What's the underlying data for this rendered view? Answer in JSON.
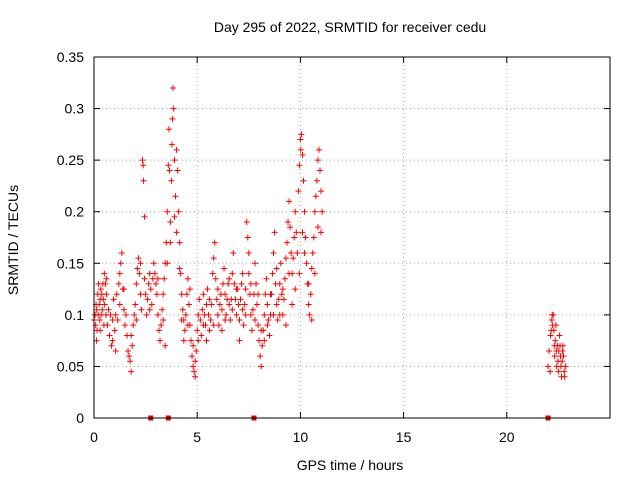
{
  "chart_data": {
    "type": "scatter",
    "title": "Day 295 of 2022, SRMTID for receiver cedu",
    "xlabel": "GPS time / hours",
    "ylabel": "SRMTID / TECUs",
    "xlim": [
      0,
      25
    ],
    "ylim": [
      0,
      0.35
    ],
    "x_ticks": [
      0,
      5,
      10,
      15,
      20
    ],
    "x_tick_labels": [
      "0",
      "5",
      "10",
      "15",
      "20"
    ],
    "y_ticks": [
      0,
      0.05,
      0.1,
      0.15,
      0.2,
      0.25,
      0.3,
      0.35
    ],
    "y_tick_labels": [
      "0",
      "0.05",
      "0.1",
      "0.15",
      "0.2",
      "0.25",
      "0.3",
      "0.35"
    ],
    "grid": true,
    "marker": "plus",
    "colors": {
      "points": "#ff0000",
      "gap_markers": "#dd0000",
      "grid": "#a0a0a0",
      "axes": "#000000"
    },
    "gap_markers_x": [
      2.75,
      3.6,
      7.75,
      22.0
    ],
    "points": [
      [
        0.0,
        0.095
      ],
      [
        0.05,
        0.1
      ],
      [
        0.08,
        0.09
      ],
      [
        0.1,
        0.11
      ],
      [
        0.13,
        0.105
      ],
      [
        0.15,
        0.085
      ],
      [
        0.18,
        0.12
      ],
      [
        0.2,
        0.1
      ],
      [
        0.22,
        0.13
      ],
      [
        0.25,
        0.11
      ],
      [
        0.28,
        0.095
      ],
      [
        0.3,
        0.115
      ],
      [
        0.33,
        0.125
      ],
      [
        0.35,
        0.1
      ],
      [
        0.38,
        0.12
      ],
      [
        0.4,
        0.105
      ],
      [
        0.43,
        0.13
      ],
      [
        0.45,
        0.115
      ],
      [
        0.48,
        0.09
      ],
      [
        0.5,
        0.14
      ],
      [
        0.52,
        0.11
      ],
      [
        0.55,
        0.13
      ],
      [
        0.58,
        0.1
      ],
      [
        0.6,
        0.12
      ],
      [
        0.65,
        0.09
      ],
      [
        0.7,
        0.105
      ],
      [
        0.75,
        0.08
      ],
      [
        0.8,
        0.1
      ],
      [
        0.85,
        0.07
      ],
      [
        0.9,
        0.095
      ],
      [
        0.95,
        0.115
      ],
      [
        1.0,
        0.085
      ],
      [
        1.05,
        0.1
      ],
      [
        1.1,
        0.12
      ],
      [
        1.15,
        0.095
      ],
      [
        1.2,
        0.13
      ],
      [
        1.25,
        0.11
      ],
      [
        1.3,
        0.15
      ],
      [
        1.35,
        0.16
      ],
      [
        1.4,
        0.125
      ],
      [
        1.45,
        0.105
      ],
      [
        1.5,
        0.09
      ],
      [
        1.55,
        0.1
      ],
      [
        1.6,
        0.08
      ],
      [
        1.65,
        0.065
      ],
      [
        1.7,
        0.06
      ],
      [
        1.75,
        0.055
      ],
      [
        1.8,
        0.045
      ],
      [
        1.85,
        0.07
      ],
      [
        1.9,
        0.09
      ],
      [
        1.95,
        0.1
      ],
      [
        2.0,
        0.11
      ],
      [
        2.05,
        0.13
      ],
      [
        2.1,
        0.145
      ],
      [
        2.15,
        0.155
      ],
      [
        2.2,
        0.14
      ],
      [
        2.25,
        0.12
      ],
      [
        2.3,
        0.105
      ],
      [
        2.35,
        0.25
      ],
      [
        2.38,
        0.245
      ],
      [
        2.4,
        0.23
      ],
      [
        2.45,
        0.195
      ],
      [
        2.5,
        0.12
      ],
      [
        2.55,
        0.1
      ],
      [
        2.6,
        0.115
      ],
      [
        2.65,
        0.13
      ],
      [
        2.7,
        0.14
      ],
      [
        2.75,
        0.125
      ],
      [
        2.8,
        0.11
      ],
      [
        2.85,
        0.135
      ],
      [
        2.9,
        0.15
      ],
      [
        2.95,
        0.14
      ],
      [
        3.0,
        0.13
      ],
      [
        3.05,
        0.12
      ],
      [
        3.1,
        0.1
      ],
      [
        3.15,
        0.085
      ],
      [
        3.2,
        0.075
      ],
      [
        3.25,
        0.09
      ],
      [
        3.3,
        0.105
      ],
      [
        3.35,
        0.12
      ],
      [
        3.4,
        0.135
      ],
      [
        3.45,
        0.15
      ],
      [
        3.5,
        0.17
      ],
      [
        3.55,
        0.2
      ],
      [
        3.6,
        0.245
      ],
      [
        3.63,
        0.28
      ],
      [
        3.66,
        0.24
      ],
      [
        3.7,
        0.19
      ],
      [
        3.75,
        0.23
      ],
      [
        3.78,
        0.265
      ],
      [
        3.8,
        0.29
      ],
      [
        3.83,
        0.32
      ],
      [
        3.86,
        0.3
      ],
      [
        3.9,
        0.25
      ],
      [
        3.95,
        0.215
      ],
      [
        4.0,
        0.26
      ],
      [
        4.05,
        0.24
      ],
      [
        4.1,
        0.2
      ],
      [
        4.15,
        0.17
      ],
      [
        4.2,
        0.14
      ],
      [
        4.25,
        0.12
      ],
      [
        4.3,
        0.105
      ],
      [
        4.35,
        0.095
      ],
      [
        4.4,
        0.085
      ],
      [
        4.45,
        0.1
      ],
      [
        4.5,
        0.12
      ],
      [
        4.55,
        0.135
      ],
      [
        4.6,
        0.11
      ],
      [
        4.65,
        0.09
      ],
      [
        4.7,
        0.075
      ],
      [
        4.75,
        0.06
      ],
      [
        4.8,
        0.05
      ],
      [
        4.85,
        0.045
      ],
      [
        4.9,
        0.04
      ],
      [
        4.95,
        0.065
      ],
      [
        5.0,
        0.085
      ],
      [
        5.05,
        0.1
      ],
      [
        5.1,
        0.115
      ],
      [
        5.15,
        0.095
      ],
      [
        5.2,
        0.08
      ],
      [
        5.25,
        0.105
      ],
      [
        5.3,
        0.12
      ],
      [
        5.35,
        0.1
      ],
      [
        5.4,
        0.09
      ],
      [
        5.45,
        0.11
      ],
      [
        5.5,
        0.125
      ],
      [
        5.55,
        0.1
      ],
      [
        5.6,
        0.085
      ],
      [
        5.65,
        0.095
      ],
      [
        5.7,
        0.11
      ],
      [
        5.75,
        0.14
      ],
      [
        5.8,
        0.155
      ],
      [
        5.85,
        0.17
      ],
      [
        5.9,
        0.135
      ],
      [
        5.95,
        0.115
      ],
      [
        6.0,
        0.1
      ],
      [
        6.05,
        0.09
      ],
      [
        6.1,
        0.11
      ],
      [
        6.15,
        0.12
      ],
      [
        6.2,
        0.105
      ],
      [
        6.25,
        0.13
      ],
      [
        6.3,
        0.145
      ],
      [
        6.35,
        0.12
      ],
      [
        6.4,
        0.1
      ],
      [
        6.45,
        0.115
      ],
      [
        6.5,
        0.13
      ],
      [
        6.55,
        0.11
      ],
      [
        6.6,
        0.095
      ],
      [
        6.65,
        0.115
      ],
      [
        6.7,
        0.14
      ],
      [
        6.75,
        0.16
      ],
      [
        6.8,
        0.13
      ],
      [
        6.85,
        0.115
      ],
      [
        6.9,
        0.1
      ],
      [
        6.95,
        0.125
      ],
      [
        7.0,
        0.11
      ],
      [
        7.05,
        0.095
      ],
      [
        7.1,
        0.115
      ],
      [
        7.15,
        0.13
      ],
      [
        7.2,
        0.105
      ],
      [
        7.25,
        0.09
      ],
      [
        7.3,
        0.11
      ],
      [
        7.35,
        0.125
      ],
      [
        7.4,
        0.19
      ],
      [
        7.45,
        0.175
      ],
      [
        7.5,
        0.14
      ],
      [
        7.55,
        0.12
      ],
      [
        7.6,
        0.1
      ],
      [
        7.65,
        0.085
      ],
      [
        7.7,
        0.105
      ],
      [
        7.75,
        0.12
      ],
      [
        7.8,
        0.15
      ],
      [
        7.85,
        0.13
      ],
      [
        7.9,
        0.11
      ],
      [
        7.95,
        0.09
      ],
      [
        8.0,
        0.075
      ],
      [
        8.05,
        0.06
      ],
      [
        8.1,
        0.05
      ],
      [
        8.15,
        0.07
      ],
      [
        8.2,
        0.085
      ],
      [
        8.25,
        0.1
      ],
      [
        8.3,
        0.12
      ],
      [
        8.35,
        0.135
      ],
      [
        8.4,
        0.11
      ],
      [
        8.45,
        0.095
      ],
      [
        8.5,
        0.08
      ],
      [
        8.55,
        0.1
      ],
      [
        8.6,
        0.12
      ],
      [
        8.65,
        0.14
      ],
      [
        8.7,
        0.16
      ],
      [
        8.75,
        0.18
      ],
      [
        8.8,
        0.13
      ],
      [
        8.85,
        0.11
      ],
      [
        8.9,
        0.095
      ],
      [
        8.95,
        0.115
      ],
      [
        9.0,
        0.13
      ],
      [
        9.05,
        0.15
      ],
      [
        9.1,
        0.12
      ],
      [
        9.15,
        0.1
      ],
      [
        9.2,
        0.115
      ],
      [
        9.25,
        0.135
      ],
      [
        9.3,
        0.155
      ],
      [
        9.35,
        0.17
      ],
      [
        9.4,
        0.19
      ],
      [
        9.45,
        0.21
      ],
      [
        9.5,
        0.185
      ],
      [
        9.55,
        0.16
      ],
      [
        9.6,
        0.14
      ],
      [
        9.65,
        0.155
      ],
      [
        9.7,
        0.175
      ],
      [
        9.75,
        0.2
      ],
      [
        9.8,
        0.18
      ],
      [
        9.85,
        0.16
      ],
      [
        9.9,
        0.22
      ],
      [
        9.95,
        0.245
      ],
      [
        10.0,
        0.27
      ],
      [
        10.02,
        0.26
      ],
      [
        10.05,
        0.275
      ],
      [
        10.1,
        0.255
      ],
      [
        10.15,
        0.23
      ],
      [
        10.2,
        0.2
      ],
      [
        10.25,
        0.175
      ],
      [
        10.3,
        0.15
      ],
      [
        10.35,
        0.13
      ],
      [
        10.4,
        0.11
      ],
      [
        10.45,
        0.1
      ],
      [
        10.5,
        0.12
      ],
      [
        10.55,
        0.145
      ],
      [
        10.6,
        0.16
      ],
      [
        10.65,
        0.175
      ],
      [
        10.7,
        0.2
      ],
      [
        10.75,
        0.215
      ],
      [
        10.8,
        0.23
      ],
      [
        10.85,
        0.25
      ],
      [
        10.9,
        0.26
      ],
      [
        10.95,
        0.24
      ],
      [
        11.0,
        0.22
      ],
      [
        11.05,
        0.2
      ],
      [
        0.12,
        0.075
      ],
      [
        0.3,
        0.085
      ],
      [
        0.6,
        0.135
      ],
      [
        0.9,
        0.075
      ],
      [
        1.05,
        0.065
      ],
      [
        1.25,
        0.14
      ],
      [
        1.45,
        0.125
      ],
      [
        1.8,
        0.08
      ],
      [
        2.05,
        0.095
      ],
      [
        2.25,
        0.15
      ],
      [
        2.45,
        0.135
      ],
      [
        2.7,
        0.105
      ],
      [
        3.1,
        0.135
      ],
      [
        3.35,
        0.095
      ],
      [
        3.45,
        0.07
      ],
      [
        3.55,
        0.15
      ],
      [
        3.7,
        0.17
      ],
      [
        3.9,
        0.195
      ],
      [
        4.0,
        0.18
      ],
      [
        4.15,
        0.145
      ],
      [
        4.25,
        0.095
      ],
      [
        4.35,
        0.075
      ],
      [
        4.55,
        0.09
      ],
      [
        4.65,
        0.125
      ],
      [
        4.8,
        0.07
      ],
      [
        4.9,
        0.055
      ],
      [
        5.05,
        0.075
      ],
      [
        5.3,
        0.09
      ],
      [
        5.45,
        0.075
      ],
      [
        5.6,
        0.115
      ],
      [
        5.8,
        0.09
      ],
      [
        6.0,
        0.125
      ],
      [
        6.2,
        0.085
      ],
      [
        6.35,
        0.095
      ],
      [
        6.55,
        0.135
      ],
      [
        6.7,
        0.105
      ],
      [
        6.9,
        0.125
      ],
      [
        7.05,
        0.075
      ],
      [
        7.2,
        0.14
      ],
      [
        7.35,
        0.1
      ],
      [
        7.5,
        0.16
      ],
      [
        7.6,
        0.13
      ],
      [
        7.8,
        0.095
      ],
      [
        7.95,
        0.12
      ],
      [
        8.1,
        0.085
      ],
      [
        8.25,
        0.075
      ],
      [
        8.4,
        0.09
      ],
      [
        8.55,
        0.12
      ],
      [
        8.7,
        0.1
      ],
      [
        8.85,
        0.145
      ],
      [
        9.0,
        0.1
      ],
      [
        9.15,
        0.125
      ],
      [
        9.3,
        0.09
      ],
      [
        9.45,
        0.14
      ],
      [
        9.6,
        0.11
      ],
      [
        9.75,
        0.125
      ],
      [
        9.95,
        0.14
      ],
      [
        10.1,
        0.18
      ],
      [
        10.2,
        0.16
      ],
      [
        10.4,
        0.13
      ],
      [
        10.55,
        0.095
      ],
      [
        10.7,
        0.14
      ],
      [
        10.85,
        0.185
      ],
      [
        11.0,
        0.18
      ],
      [
        22.0,
        0.05
      ],
      [
        22.05,
        0.065
      ],
      [
        22.1,
        0.045
      ],
      [
        22.12,
        0.08
      ],
      [
        22.15,
        0.085
      ],
      [
        22.18,
        0.095
      ],
      [
        22.2,
        0.1
      ],
      [
        22.22,
        0.09
      ],
      [
        22.25,
        0.1
      ],
      [
        22.28,
        0.085
      ],
      [
        22.3,
        0.07
      ],
      [
        22.32,
        0.06
      ],
      [
        22.35,
        0.075
      ],
      [
        22.38,
        0.09
      ],
      [
        22.4,
        0.065
      ],
      [
        22.42,
        0.05
      ],
      [
        22.45,
        0.07
      ],
      [
        22.48,
        0.055
      ],
      [
        22.5,
        0.045
      ],
      [
        22.52,
        0.065
      ],
      [
        22.55,
        0.08
      ],
      [
        22.58,
        0.07
      ],
      [
        22.6,
        0.06
      ],
      [
        22.62,
        0.05
      ],
      [
        22.65,
        0.04
      ],
      [
        22.68,
        0.055
      ],
      [
        22.7,
        0.065
      ],
      [
        22.72,
        0.07
      ],
      [
        22.75,
        0.06
      ],
      [
        22.78,
        0.045
      ],
      [
        22.8,
        0.04
      ],
      [
        22.85,
        0.05
      ]
    ]
  }
}
